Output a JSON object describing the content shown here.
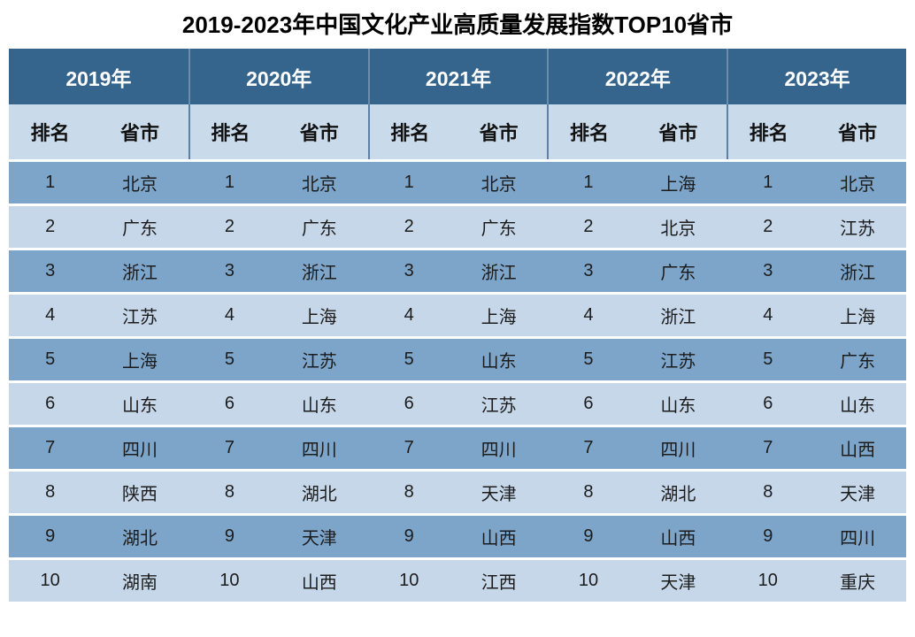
{
  "chart_data": {
    "type": "table",
    "title": "2019-2023年中国文化产业高质量发展指数TOP10省市",
    "years": [
      "2019年",
      "2020年",
      "2021年",
      "2022年",
      "2023年"
    ],
    "sub_headers": {
      "rank": "排名",
      "province": "省市"
    },
    "rows": [
      {
        "rank": "1",
        "provinces": [
          "北京",
          "北京",
          "北京",
          "上海",
          "北京"
        ]
      },
      {
        "rank": "2",
        "provinces": [
          "广东",
          "广东",
          "广东",
          "北京",
          "江苏"
        ]
      },
      {
        "rank": "3",
        "provinces": [
          "浙江",
          "浙江",
          "浙江",
          "广东",
          "浙江"
        ]
      },
      {
        "rank": "4",
        "provinces": [
          "江苏",
          "上海",
          "上海",
          "浙江",
          "上海"
        ]
      },
      {
        "rank": "5",
        "provinces": [
          "上海",
          "江苏",
          "山东",
          "江苏",
          "广东"
        ]
      },
      {
        "rank": "6",
        "provinces": [
          "山东",
          "山东",
          "江苏",
          "山东",
          "山东"
        ]
      },
      {
        "rank": "7",
        "provinces": [
          "四川",
          "四川",
          "四川",
          "四川",
          "山西"
        ]
      },
      {
        "rank": "8",
        "provinces": [
          "陕西",
          "湖北",
          "天津",
          "湖北",
          "天津"
        ]
      },
      {
        "rank": "9",
        "provinces": [
          "湖北",
          "天津",
          "山西",
          "山西",
          "四川"
        ]
      },
      {
        "rank": "10",
        "provinces": [
          "湖南",
          "山西",
          "江西",
          "天津",
          "重庆"
        ]
      }
    ]
  },
  "colors": {
    "header_bg": "#35658c",
    "header_text": "#ffffff",
    "subheader_bg": "#c9daea",
    "row_odd_bg": "#7da5c9",
    "row_even_bg": "#c6d7e9",
    "row_separator": "#ffffff",
    "body_text": "#1c1c1c",
    "title_text": "#000000"
  }
}
